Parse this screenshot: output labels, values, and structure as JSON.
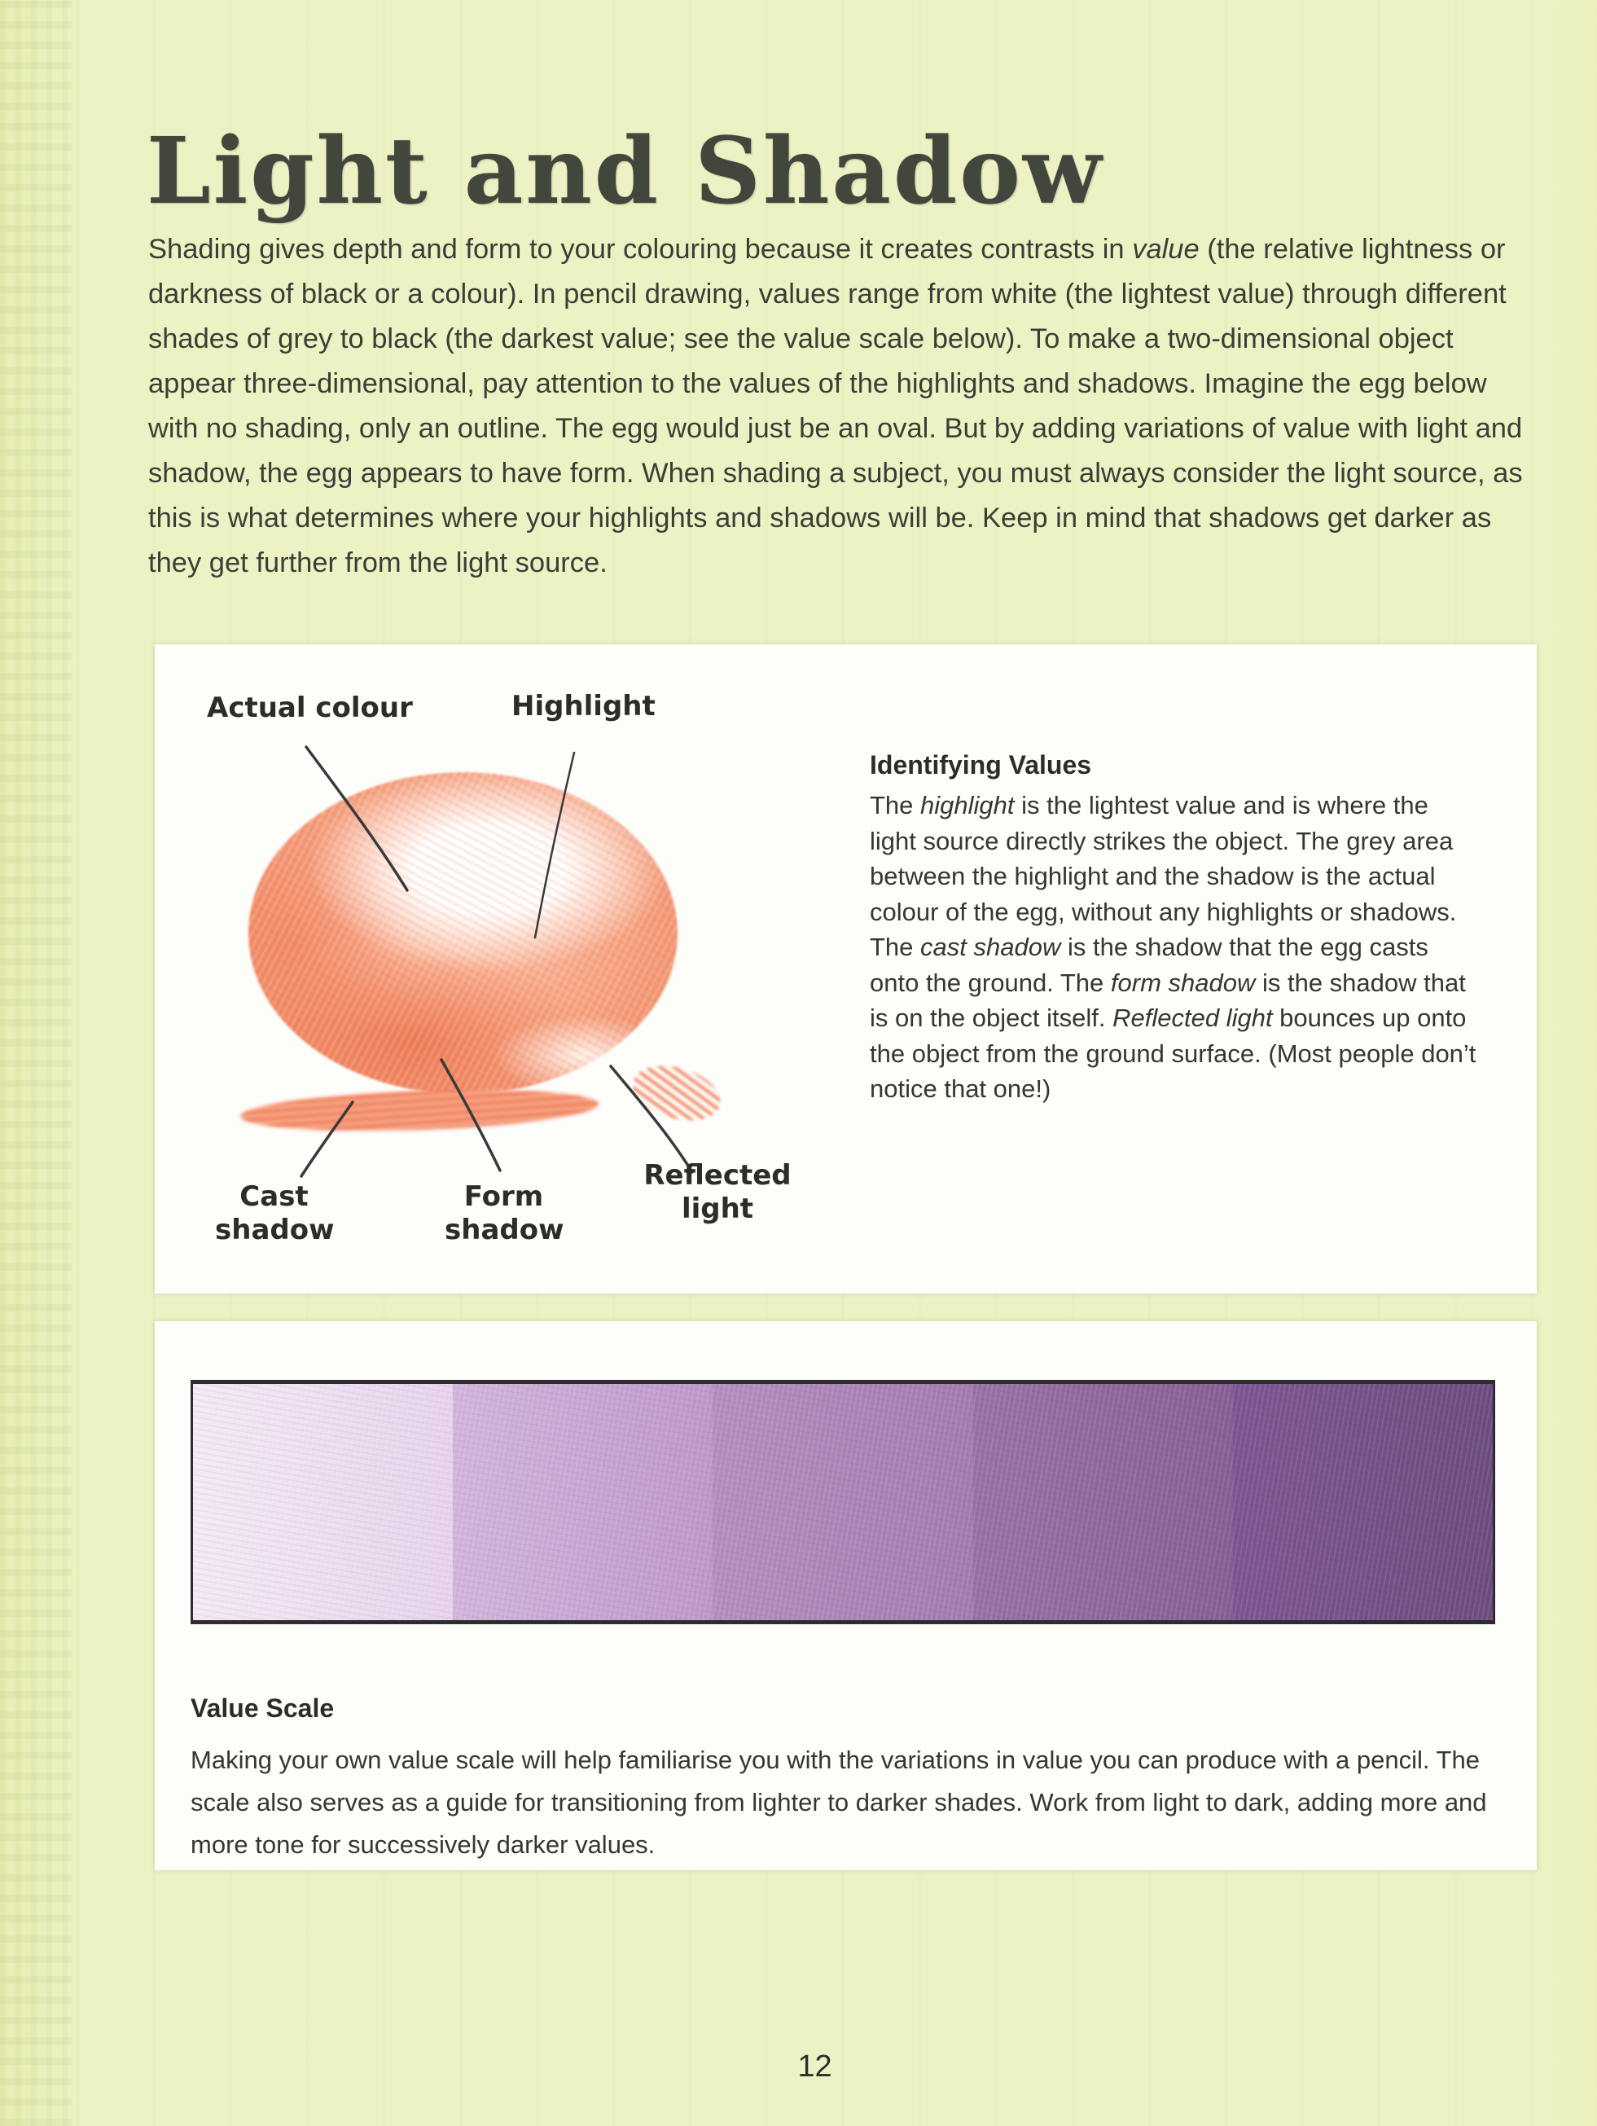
{
  "page": {
    "title": "Light and Shadow",
    "page_number": "12",
    "background_color": "#edf2c4",
    "panel_color": "#fdfdfa",
    "text_color": "#3a3e36"
  },
  "intro": {
    "segments": [
      {
        "text": "Shading gives depth and form to your colouring because it creates contrasts in "
      },
      {
        "text": "value",
        "italic": true
      },
      {
        "text": " (the relative lightness or darkness of black or a colour). In pencil drawing, values range from white (the lightest value) through different shades of grey to black (the darkest value; see the value scale below). To make a two-dimensional object appear three-dimensional, pay attention to the values of the highlights and shadows. Imagine the egg below with no shading, only an outline. The egg would just be an oval. But by adding variations of value with light and shadow, the egg appears to have form. When shading a subject, you must always consider the light source, as this is what determines where your highlights and shadows will be. Keep in mind that shadows get darker as they get further from the light source."
      }
    ]
  },
  "egg_diagram": {
    "egg_color": "#f4936e",
    "labels": {
      "actual_colour": "Actual colour",
      "highlight": "Highlight",
      "cast_shadow": "Cast shadow",
      "form_shadow": "Form shadow",
      "reflected_light": "Reflected light"
    },
    "identifying_values": {
      "heading": "Identifying Values",
      "segments": [
        {
          "text": "The "
        },
        {
          "text": "highlight",
          "italic": true
        },
        {
          "text": " is the lightest value and is where the light source directly strikes the object. The grey area between the highlight and the shadow is the actual colour of the egg, without any highlights or shadows. The "
        },
        {
          "text": "cast shadow",
          "italic": true
        },
        {
          "text": " is the shadow that the egg casts onto the ground. The "
        },
        {
          "text": "form shadow",
          "italic": true
        },
        {
          "text": " is the shadow that is on the object itself. "
        },
        {
          "text": "Reflected light",
          "italic": true
        },
        {
          "text": " bounces up onto the object from the ground surface. (Most people don’t notice that one!)"
        }
      ]
    }
  },
  "value_scale": {
    "heading": "Value Scale",
    "body": "Making your own value scale will help familiarise you with the variations in value you can produce with a pencil. The scale also serves as a guide for transitioning from lighter to darker shades. Work from light to dark, adding more and more tone for successively darker values.",
    "values_light_to_dark": [
      "#f0e2f0",
      "#c9a9d3",
      "#a87fb5",
      "#8a639c",
      "#6f4f83"
    ],
    "segments": [
      {
        "from": "#f4eaf5",
        "to": "#e7d4eb"
      },
      {
        "from": "#d2b5db",
        "to": "#bd99c9"
      },
      {
        "from": "#b38fc0",
        "to": "#a27bb0"
      },
      {
        "from": "#9671a5",
        "to": "#855e94"
      },
      {
        "from": "#7b5590",
        "to": "#6c4b7f"
      }
    ]
  }
}
